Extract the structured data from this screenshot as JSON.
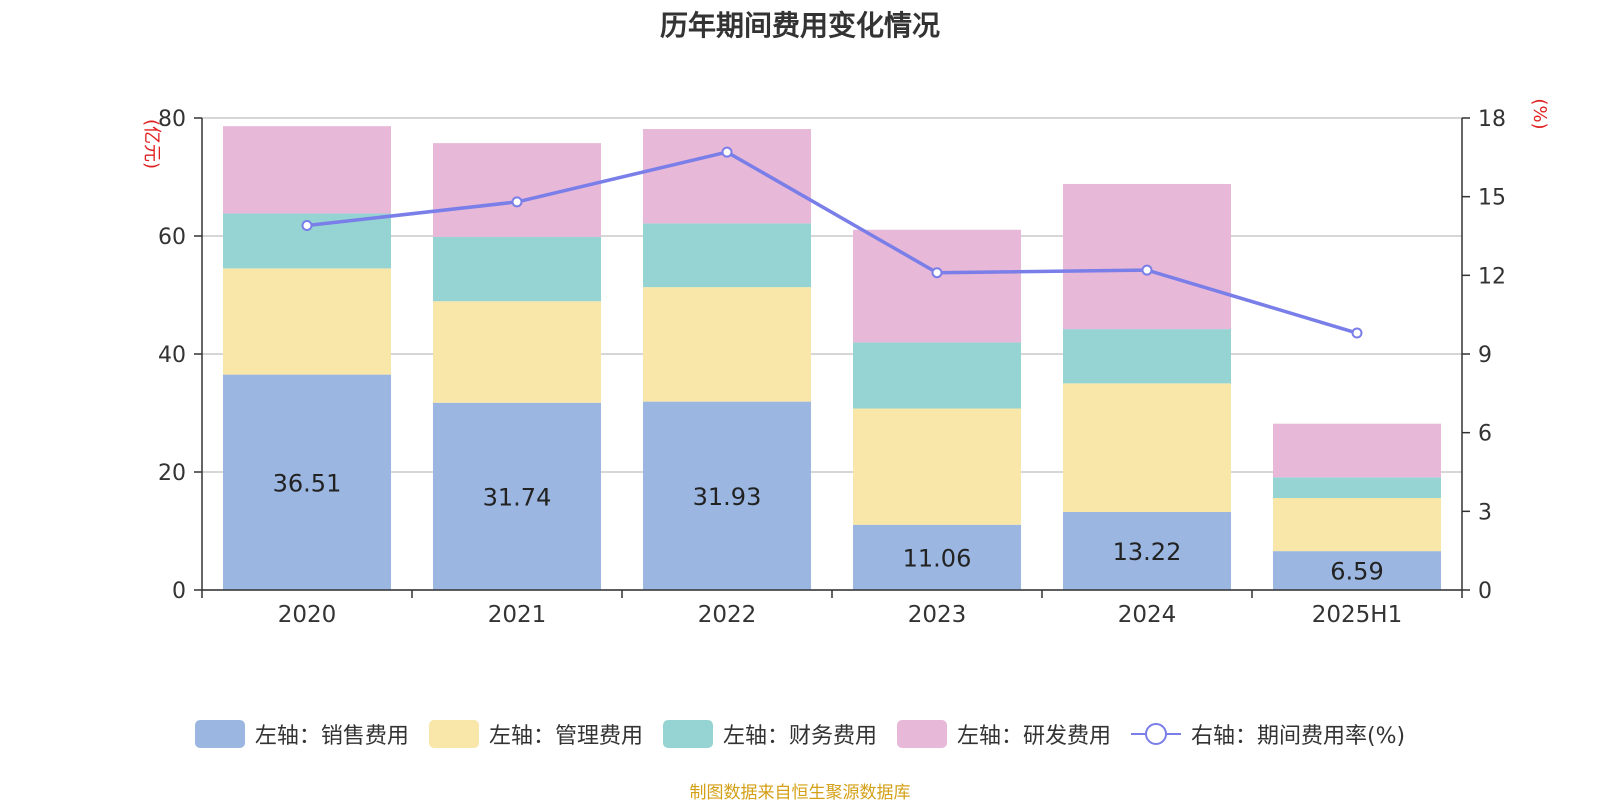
{
  "chart_data": {
    "type": "bar",
    "title": "历年期间费用变化情况",
    "categories": [
      "2020",
      "2021",
      "2022",
      "2023",
      "2024",
      "2025H1"
    ],
    "left_axis": {
      "label": "(亿元)",
      "min": 0,
      "max": 80,
      "ticks": [
        0,
        20,
        40,
        60,
        80
      ]
    },
    "right_axis": {
      "label": "(%)",
      "min": 0,
      "max": 18,
      "ticks": [
        0,
        3,
        6,
        9,
        12,
        15,
        18
      ]
    },
    "series": [
      {
        "name": "左轴：销售费用",
        "color": "#9bb7e1",
        "values": [
          36.51,
          31.74,
          31.93,
          11.06,
          13.22,
          6.59
        ]
      },
      {
        "name": "左轴：管理费用",
        "color": "#f8e7a8",
        "values": [
          18.0,
          17.2,
          19.4,
          19.7,
          21.8,
          9.0
        ]
      },
      {
        "name": "左轴：财务费用",
        "color": "#96d4d4",
        "values": [
          9.3,
          10.9,
          10.8,
          11.2,
          9.2,
          3.5
        ]
      },
      {
        "name": "左轴：研发费用",
        "color": "#e8b8d8",
        "values": [
          14.8,
          15.9,
          16.0,
          19.1,
          24.6,
          9.1
        ]
      }
    ],
    "line_series": {
      "name": "右轴：期间费用率(%)",
      "color": "#7a7ee8",
      "values": [
        13.9,
        14.8,
        16.7,
        12.1,
        12.2,
        9.8
      ]
    },
    "bar_labels": [
      "36.51",
      "31.74",
      "31.93",
      "11.06",
      "13.22",
      "6.59"
    ],
    "grid": true,
    "legend_position": "bottom"
  },
  "source_text": "制图数据来自恒生聚源数据库"
}
